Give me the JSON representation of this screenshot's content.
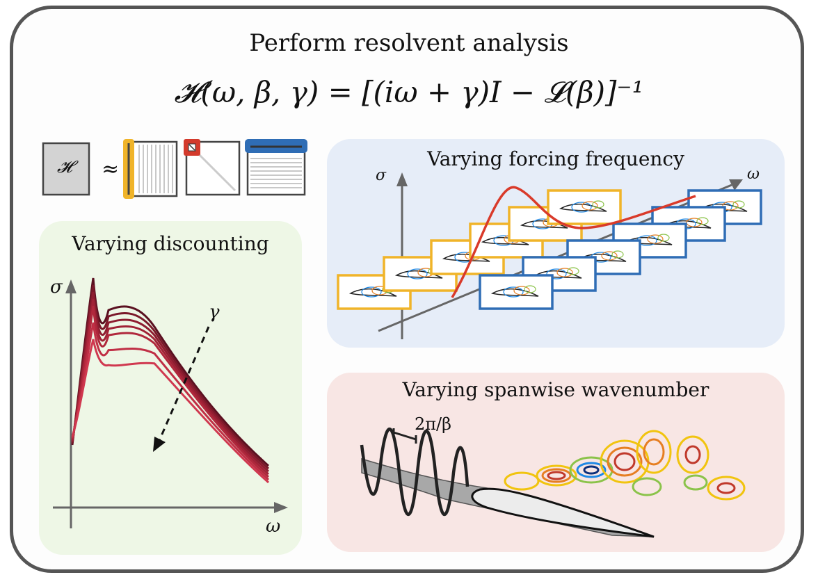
{
  "header": {
    "title": "Perform resolvent analysis",
    "equation": "𝓗(ω, β, γ) = [(iω + γ)I − 𝓛(β)]⁻¹"
  },
  "svd_row": {
    "operator_symbol": "𝓗",
    "approx_symbol": "≈",
    "colors": {
      "left_singular": "#f0b429",
      "singular_values": "#d33a2c",
      "right_singular": "#2f6db5"
    }
  },
  "panels": {
    "discounting": {
      "title": "Varying discounting",
      "y_label": "σ",
      "x_label": "ω",
      "param_label": "γ",
      "curve_colors": [
        "#5a1020",
        "#7a1829",
        "#8e1d30",
        "#a02236",
        "#b0283c",
        "#c02f45",
        "#d0384f"
      ],
      "background": "#eef7e6"
    },
    "frequency": {
      "title": "Varying forcing frequency",
      "y_label": "σ",
      "x_label": "ω",
      "curve_color": "#d93a2a",
      "low_frame_color": "#f0b429",
      "high_frame_color": "#2f6db5",
      "background": "#e6edf8"
    },
    "spanwise": {
      "title": "Varying spanwise wavenumber",
      "wavelength_label": "2π/β",
      "background": "#f8e6e4"
    }
  }
}
